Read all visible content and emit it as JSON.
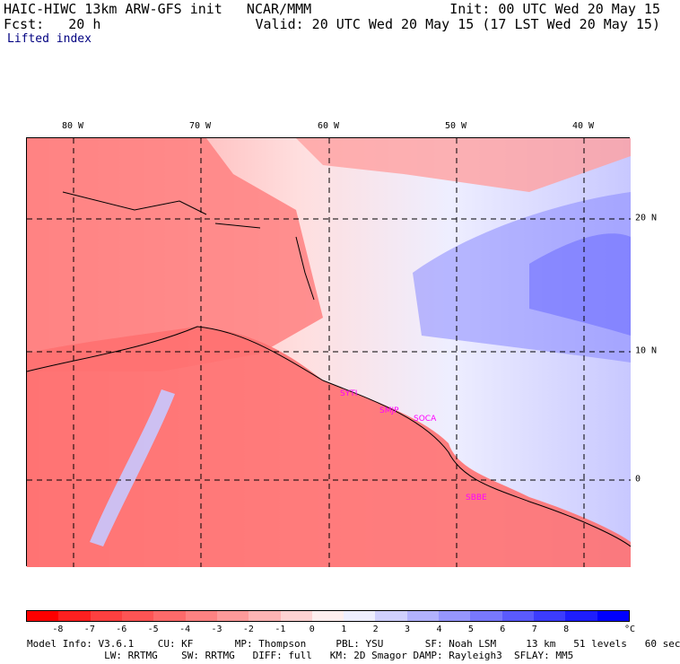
{
  "header": {
    "left1": "HAIC-HIWC 13km ARW-GFS init   NCAR/MMM",
    "left2": "Fcst:   20 h",
    "right1": "Init: 00 UTC Wed 20 May 15",
    "right2": "Valid: 20 UTC Wed 20 May 15 (17 LST Wed 20 May 15)",
    "field": "Lifted index"
  },
  "axes": {
    "lon": [
      "80 W",
      "70 W",
      "60 W",
      "50 W",
      "40 W"
    ],
    "lat": [
      "20 N",
      "10 N",
      "0"
    ]
  },
  "stations": [
    "SYTI",
    "SMJP",
    "SOCA",
    "SBBE"
  ],
  "colorbar": {
    "ticks": [
      "-8",
      "-7",
      "-6",
      "-5",
      "-4",
      "-3",
      "-2",
      "-1",
      "0",
      "1",
      "2",
      "3",
      "4",
      "5",
      "6",
      "7",
      "8"
    ],
    "unit": "°C",
    "colors": [
      "#ff0000",
      "#ff2020",
      "#ff4040",
      "#ff5454",
      "#ff6a6a",
      "#ff8282",
      "#ff9a9a",
      "#ffb4b4",
      "#ffd2d2",
      "#ffeeee",
      "#eeeeff",
      "#d0d0ff",
      "#b2b2ff",
      "#9696ff",
      "#7878ff",
      "#5a5aff",
      "#3c3cff",
      "#1e1eff",
      "#0000ff"
    ]
  },
  "footer": {
    "line1": "Model Info: V3.6.1    CU: KF       MP: Thompson     PBL: YSU       SF: Noah LSM     13 km   51 levels   60 sec",
    "line2": "             LW: RRTMG    SW: RRTMG   DIFF: full   KM: 2D Smagor DAMP: Rayleigh3  SFLAY: MM5"
  }
}
